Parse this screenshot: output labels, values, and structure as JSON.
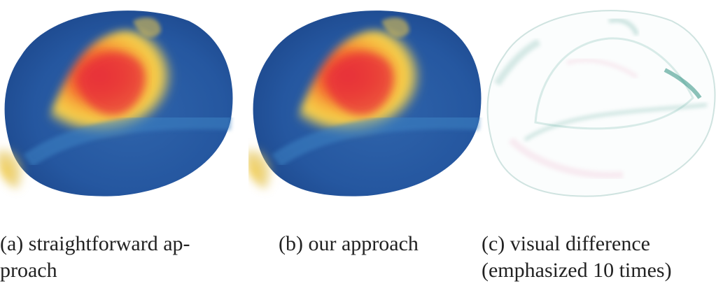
{
  "figure": {
    "panels": [
      {
        "label": "(a)",
        "caption": "straightforward approach",
        "caption_lines": [
          "straightforward ap-",
          "proach"
        ]
      },
      {
        "label": "(b)",
        "caption": "our approach",
        "caption_lines": [
          "our approach"
        ]
      },
      {
        "label": "(c)",
        "caption": "visual difference (emphasized 10 times)",
        "caption_lines": [
          "visual difference",
          "(emphasized 10 times)"
        ]
      }
    ],
    "colormap": {
      "low": "#2a5fa8",
      "mid": "#f6c445",
      "high": "#e8303a"
    },
    "difference_colors": {
      "positive": "#2e8f7f",
      "negative": "#e06a9a"
    }
  }
}
